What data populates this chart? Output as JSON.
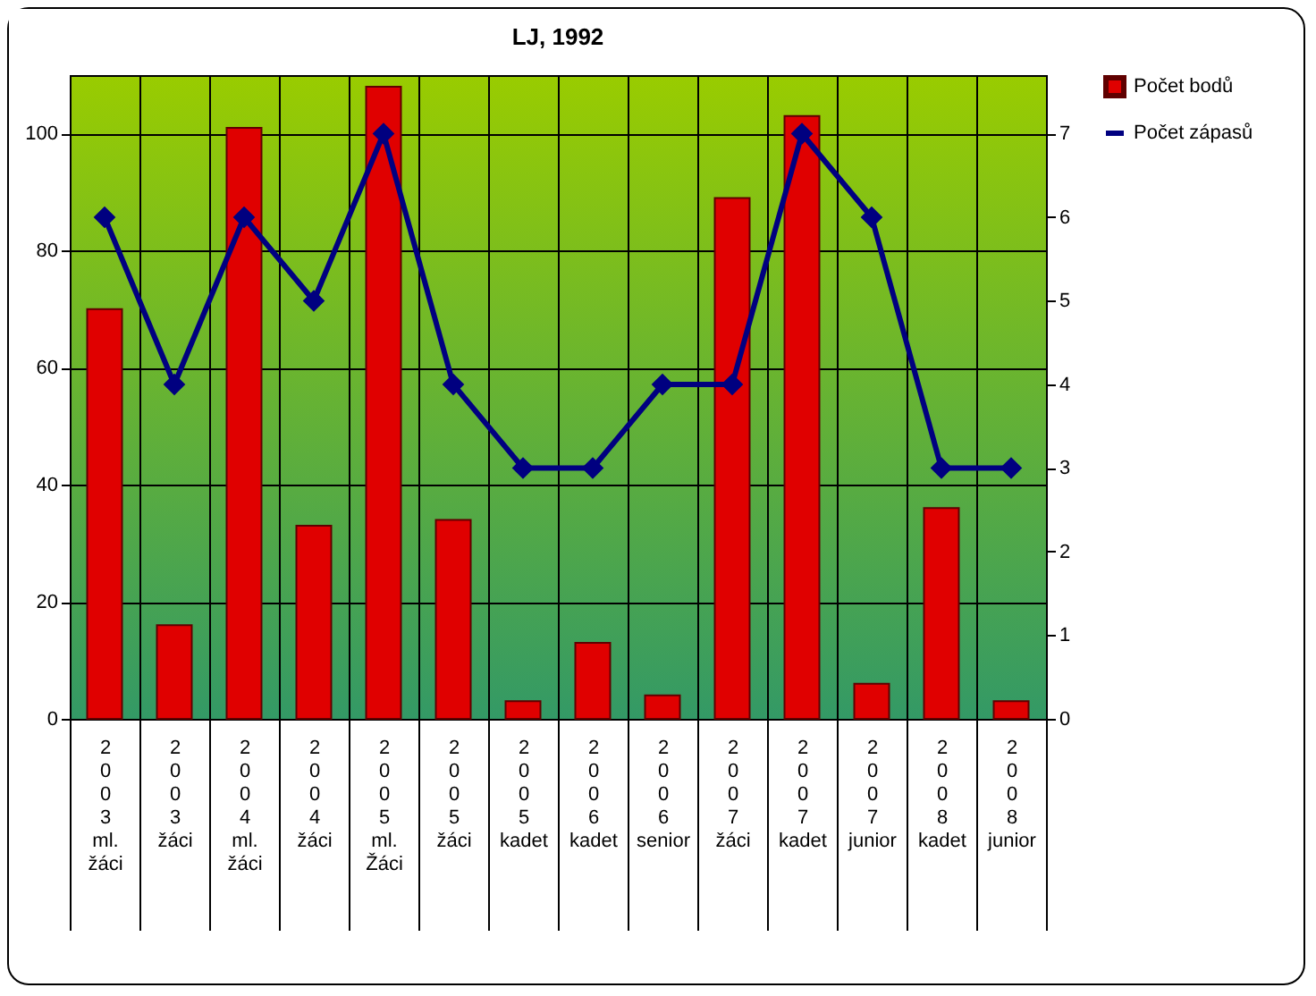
{
  "chart_data": {
    "type": "bar",
    "title": "LJ, 1992",
    "categories": [
      "2003 ml. žáci",
      "2003 žáci",
      "2004 ml. žáci",
      "2004 žáci",
      "2005 ml. Žáci",
      "2005 žáci",
      "2005 kadet",
      "2006 kadet",
      "2006 senior",
      "2007 žáci",
      "2007 kadet",
      "2007 junior",
      "2008 kadet",
      "2008 junior"
    ],
    "series": [
      {
        "name": "Počet bodů",
        "color": "#e00000",
        "values": [
          70,
          16,
          101,
          33,
          108,
          34,
          3,
          13,
          4,
          89,
          103,
          6,
          36,
          3
        ]
      },
      {
        "name": "Počet zápasů",
        "type": "line",
        "axis": "y2",
        "color": "#000080",
        "marker": "diamond",
        "values": [
          6,
          4,
          6,
          5,
          7,
          4,
          3,
          3,
          4,
          4,
          7,
          6,
          3,
          3
        ]
      }
    ],
    "ylim": [
      0,
      110
    ],
    "yticks": [
      0,
      20,
      40,
      60,
      80,
      100
    ],
    "y2lim": [
      0,
      7.7
    ],
    "y2ticks": [
      0,
      1,
      2,
      3,
      4,
      5,
      6,
      7
    ],
    "grid": true,
    "legend": "right"
  }
}
